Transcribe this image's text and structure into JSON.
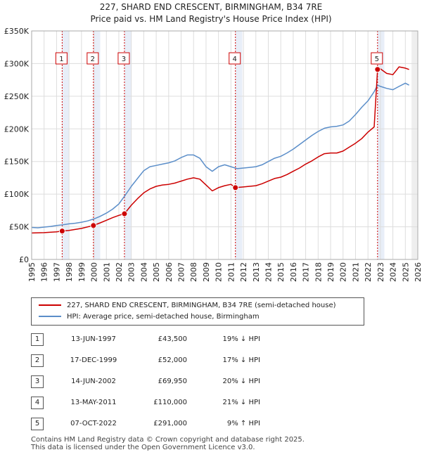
{
  "chart_data": {
    "type": "line",
    "title": "227, SHARD END CRESCENT, BIRMINGHAM, B34 7RE",
    "subtitle": "Price paid vs. HM Land Registry's House Price Index (HPI)",
    "xlim": [
      1995,
      2026
    ],
    "ylim": [
      0,
      350000
    ],
    "y_ticks": [
      {
        "value": 0,
        "label": "£0"
      },
      {
        "value": 50000,
        "label": "£50K"
      },
      {
        "value": 100000,
        "label": "£100K"
      },
      {
        "value": 150000,
        "label": "£150K"
      },
      {
        "value": 200000,
        "label": "£200K"
      },
      {
        "value": 250000,
        "label": "£250K"
      },
      {
        "value": 300000,
        "label": "£300K"
      },
      {
        "value": 350000,
        "label": "£350K"
      }
    ],
    "x_ticks": [
      "1995",
      "1996",
      "1997",
      "1998",
      "1999",
      "2000",
      "2001",
      "2002",
      "2003",
      "2004",
      "2005",
      "2006",
      "2007",
      "2008",
      "2009",
      "2010",
      "2011",
      "2012",
      "2013",
      "2014",
      "2015",
      "2016",
      "2017",
      "2018",
      "2019",
      "2020",
      "2021",
      "2022",
      "2023",
      "2024",
      "2025",
      "2026"
    ],
    "series": [
      {
        "name": "227, SHARD END CRESCENT, BIRMINGHAM, B34 7RE (semi-detached house)",
        "color": "#cc0000",
        "points": [
          [
            1995.0,
            40500
          ],
          [
            1996.0,
            41000
          ],
          [
            1997.0,
            42300
          ],
          [
            1997.45,
            43500
          ],
          [
            1998.0,
            44500
          ],
          [
            1999.0,
            47500
          ],
          [
            1999.96,
            52000
          ],
          [
            2000.5,
            56000
          ],
          [
            2001.0,
            60000
          ],
          [
            2001.5,
            64000
          ],
          [
            2002.0,
            67500
          ],
          [
            2002.45,
            69950
          ],
          [
            2003.0,
            83000
          ],
          [
            2003.5,
            93000
          ],
          [
            2004.0,
            102000
          ],
          [
            2004.5,
            108000
          ],
          [
            2005.0,
            112000
          ],
          [
            2005.5,
            114000
          ],
          [
            2006.0,
            115000
          ],
          [
            2006.5,
            117000
          ],
          [
            2007.0,
            120000
          ],
          [
            2007.5,
            123000
          ],
          [
            2008.0,
            125000
          ],
          [
            2008.5,
            123000
          ],
          [
            2009.0,
            114000
          ],
          [
            2009.5,
            105000
          ],
          [
            2010.0,
            110000
          ],
          [
            2010.5,
            113000
          ],
          [
            2011.0,
            115000
          ],
          [
            2011.36,
            110000
          ],
          [
            2012.0,
            111000
          ],
          [
            2012.5,
            112000
          ],
          [
            2013.0,
            113000
          ],
          [
            2013.5,
            116000
          ],
          [
            2014.0,
            120000
          ],
          [
            2014.5,
            124000
          ],
          [
            2015.0,
            126000
          ],
          [
            2015.5,
            130000
          ],
          [
            2016.0,
            135000
          ],
          [
            2016.5,
            140000
          ],
          [
            2017.0,
            146000
          ],
          [
            2017.5,
            151000
          ],
          [
            2018.0,
            157000
          ],
          [
            2018.5,
            162000
          ],
          [
            2019.0,
            163000
          ],
          [
            2019.5,
            163000
          ],
          [
            2020.0,
            166000
          ],
          [
            2020.5,
            172000
          ],
          [
            2021.0,
            178000
          ],
          [
            2021.5,
            185000
          ],
          [
            2022.0,
            195000
          ],
          [
            2022.5,
            203000
          ],
          [
            2022.77,
            291000
          ],
          [
            2023.0,
            292000
          ],
          [
            2023.5,
            285000
          ],
          [
            2024.0,
            283000
          ],
          [
            2024.5,
            295000
          ],
          [
            2025.0,
            293000
          ],
          [
            2025.3,
            291000
          ]
        ]
      },
      {
        "name": "HPI: Average price, semi-detached house, Birmingham",
        "color": "#5b8ec9",
        "points": [
          [
            1995.0,
            49000
          ],
          [
            1995.5,
            48500
          ],
          [
            1996.0,
            49500
          ],
          [
            1996.5,
            50500
          ],
          [
            1997.0,
            52000
          ],
          [
            1997.5,
            53000
          ],
          [
            1998.0,
            54500
          ],
          [
            1998.5,
            55500
          ],
          [
            1999.0,
            57000
          ],
          [
            1999.5,
            59000
          ],
          [
            2000.0,
            62000
          ],
          [
            2000.5,
            66000
          ],
          [
            2001.0,
            71000
          ],
          [
            2001.5,
            77000
          ],
          [
            2002.0,
            85000
          ],
          [
            2002.5,
            98000
          ],
          [
            2003.0,
            112000
          ],
          [
            2003.5,
            124000
          ],
          [
            2004.0,
            136000
          ],
          [
            2004.5,
            142000
          ],
          [
            2005.0,
            144000
          ],
          [
            2005.5,
            146000
          ],
          [
            2006.0,
            148000
          ],
          [
            2006.5,
            151000
          ],
          [
            2007.0,
            156000
          ],
          [
            2007.5,
            160000
          ],
          [
            2008.0,
            160000
          ],
          [
            2008.5,
            155000
          ],
          [
            2009.0,
            142000
          ],
          [
            2009.5,
            135000
          ],
          [
            2010.0,
            142000
          ],
          [
            2010.5,
            145000
          ],
          [
            2011.0,
            142000
          ],
          [
            2011.5,
            139000
          ],
          [
            2012.0,
            140000
          ],
          [
            2012.5,
            141000
          ],
          [
            2013.0,
            142000
          ],
          [
            2013.5,
            145000
          ],
          [
            2014.0,
            150000
          ],
          [
            2014.5,
            155000
          ],
          [
            2015.0,
            158000
          ],
          [
            2015.5,
            163000
          ],
          [
            2016.0,
            169000
          ],
          [
            2016.5,
            176000
          ],
          [
            2017.0,
            183000
          ],
          [
            2017.5,
            190000
          ],
          [
            2018.0,
            196000
          ],
          [
            2018.5,
            201000
          ],
          [
            2019.0,
            203000
          ],
          [
            2019.5,
            204000
          ],
          [
            2020.0,
            206000
          ],
          [
            2020.5,
            212000
          ],
          [
            2021.0,
            222000
          ],
          [
            2021.5,
            233000
          ],
          [
            2022.0,
            243000
          ],
          [
            2022.5,
            257000
          ],
          [
            2022.77,
            267000
          ],
          [
            2023.0,
            265000
          ],
          [
            2023.5,
            262000
          ],
          [
            2024.0,
            260000
          ],
          [
            2024.5,
            265000
          ],
          [
            2025.0,
            270000
          ],
          [
            2025.3,
            267000
          ]
        ]
      }
    ],
    "sales": [
      {
        "num": "1",
        "x": 1997.45,
        "value": 43500,
        "date": "13-JUN-1997",
        "price": "£43,500",
        "hpi": "19% ↓ HPI"
      },
      {
        "num": "2",
        "x": 1999.96,
        "value": 52000,
        "date": "17-DEC-1999",
        "price": "£52,000",
        "hpi": "17% ↓ HPI"
      },
      {
        "num": "3",
        "x": 2002.45,
        "value": 69950,
        "date": "14-JUN-2002",
        "price": "£69,950",
        "hpi": "20% ↓ HPI"
      },
      {
        "num": "4",
        "x": 2011.36,
        "value": 110000,
        "date": "13-MAY-2011",
        "price": "£110,000",
        "hpi": "21% ↓ HPI"
      },
      {
        "num": "5",
        "x": 2022.77,
        "value": 291000,
        "date": "07-OCT-2022",
        "price": "£291,000",
        "hpi": "9% ↑ HPI"
      }
    ],
    "future_shade_from": 2025.5
  },
  "legend": {
    "property": "227, SHARD END CRESCENT, BIRMINGHAM, B34 7RE (semi-detached house)",
    "hpi": "HPI: Average price, semi-detached house, Birmingham"
  },
  "footer": {
    "line1": "Contains HM Land Registry data © Crown copyright and database right 2025.",
    "line2": "This data is licensed under the Open Government Licence v3.0."
  },
  "colors": {
    "property": "#cc0000",
    "hpi": "#5b8ec9",
    "band": "#e8eef8",
    "marker_line": "#cc0000"
  }
}
